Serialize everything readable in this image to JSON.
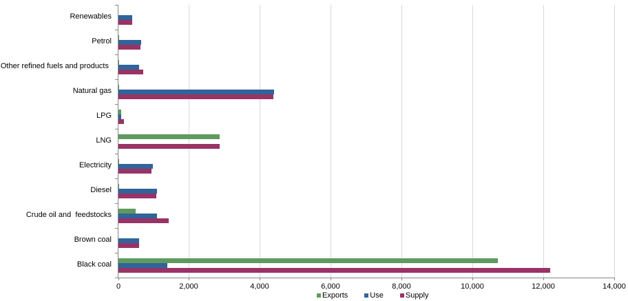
{
  "chart_data": {
    "type": "bar",
    "orientation": "horizontal",
    "title": "",
    "xlabel": "",
    "ylabel": "",
    "xlim": [
      0,
      14000
    ],
    "x_ticks": [
      "0",
      "2,000",
      "4,000",
      "6,000",
      "8,000",
      "10,000",
      "12,000",
      "14,000"
    ],
    "grid": true,
    "legend_position": "bottom",
    "categories": [
      "Renewables",
      "Petrol",
      "Other refined fuels and products",
      "Natural gas",
      "LPG",
      "LNG",
      "Electricity",
      "Diesel",
      "Crude oil and  feedstocks",
      "Brown coal",
      "Black coal"
    ],
    "series": [
      {
        "name": "Exports",
        "color": "#5f9a5f",
        "values": [
          0,
          15,
          15,
          25,
          70,
          2865,
          20,
          15,
          495,
          0,
          10700
        ]
      },
      {
        "name": "Use",
        "color": "#30649a",
        "values": [
          380,
          650,
          575,
          4400,
          70,
          0,
          980,
          1080,
          1080,
          590,
          1380
        ]
      },
      {
        "name": "Supply",
        "color": "#993366",
        "values": [
          380,
          630,
          690,
          4380,
          165,
          2865,
          925,
          1060,
          1410,
          590,
          12175
        ]
      }
    ]
  }
}
